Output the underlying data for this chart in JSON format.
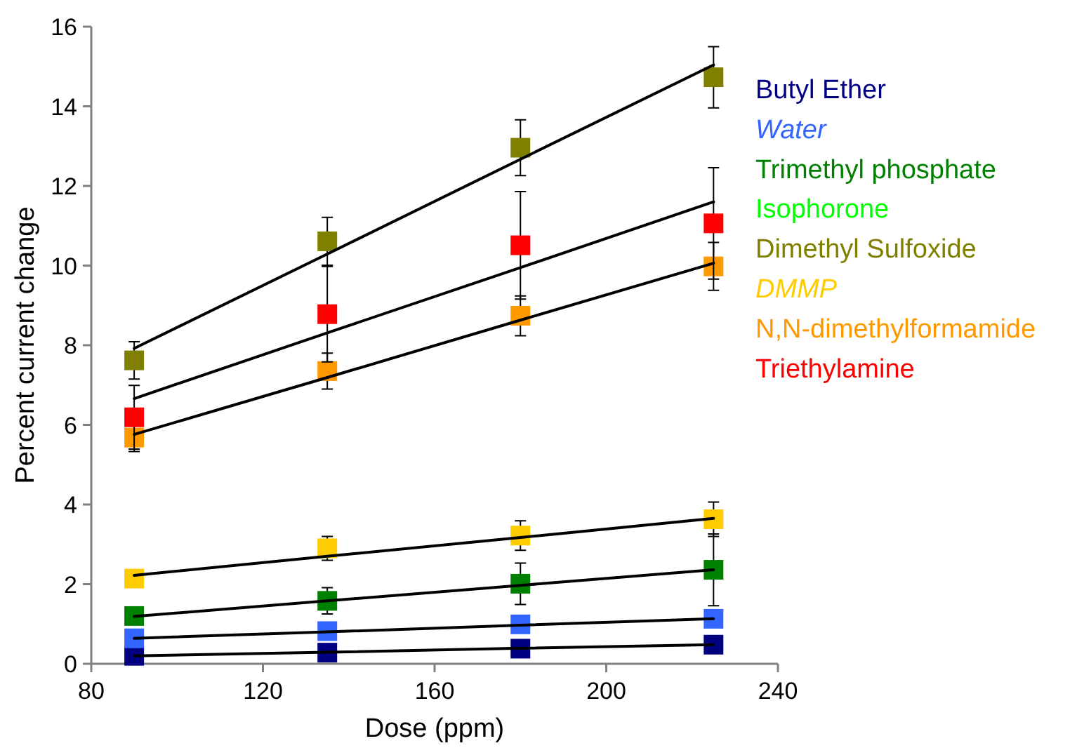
{
  "chart_data": {
    "type": "scatter",
    "xlabel": "Dose (ppm)",
    "ylabel": "Percent current change",
    "xlim": [
      80,
      240
    ],
    "xticks": [
      80,
      120,
      160,
      200,
      240
    ],
    "ylim": [
      0,
      16
    ],
    "yticks": [
      0,
      2,
      4,
      6,
      8,
      10,
      12,
      14,
      16
    ],
    "grid": false,
    "legend": "right",
    "marker": "square",
    "x": [
      90,
      135,
      180,
      225
    ],
    "series": [
      {
        "name": "Butyl Ether",
        "color": "#000080",
        "values": [
          0.2,
          0.28,
          0.38,
          0.48
        ]
      },
      {
        "name": "Water",
        "color": "#3366ff",
        "values": [
          0.64,
          0.82,
          0.99,
          1.13
        ]
      },
      {
        "name": "Trimethyl phosphate",
        "color": "#008000",
        "values": [
          1.2,
          1.58,
          2.01,
          2.36
        ],
        "errors": [
          null,
          0.33,
          0.52,
          0.9
        ]
      },
      {
        "name": "Isophorone",
        "color": "#00ff00",
        "values": [
          null,
          null,
          null,
          null
        ]
      },
      {
        "name": "Dimethyl Sulfoxide",
        "color": "#808000",
        "values": [
          7.62,
          10.61,
          12.96,
          14.73
        ],
        "errors": [
          0.47,
          0.6,
          0.7,
          0.77
        ]
      },
      {
        "name": "DMMP",
        "color": "#ffcc00",
        "values": [
          2.14,
          2.9,
          3.22,
          3.63
        ],
        "errors": [
          null,
          0.3,
          0.37,
          0.43
        ]
      },
      {
        "name": "N,N-dimethylformamide",
        "color": "#ff9900",
        "values": [
          5.68,
          7.35,
          8.74,
          9.98
        ],
        "errors": [
          0.35,
          0.45,
          0.5,
          0.6
        ]
      },
      {
        "name": "Triethylamine",
        "color": "#ff0000",
        "values": [
          6.19,
          8.78,
          10.51,
          11.06
        ],
        "errors": [
          0.8,
          1.2,
          1.35,
          1.4
        ]
      },
      {
        "type": "line",
        "marker": "none",
        "color": "#000000",
        "values": [
          0.2,
          0.29,
          0.39,
          0.48
        ]
      },
      {
        "type": "line",
        "marker": "none",
        "color": "#000000",
        "values": [
          0.64,
          0.8,
          0.97,
          1.13
        ]
      },
      {
        "type": "line",
        "marker": "none",
        "color": "#000000",
        "values": [
          1.19,
          1.58,
          1.97,
          2.36
        ]
      },
      {
        "type": "line",
        "marker": "none",
        "color": "#000000",
        "values": [
          2.22,
          2.7,
          3.17,
          3.65
        ]
      },
      {
        "type": "line",
        "marker": "none",
        "color": "#000000",
        "values": [
          7.92,
          10.29,
          12.67,
          15.04
        ]
      },
      {
        "type": "line",
        "marker": "none",
        "color": "#000000",
        "values": [
          6.66,
          8.31,
          9.95,
          11.6
        ]
      },
      {
        "type": "line",
        "marker": "none",
        "color": "#000000",
        "values": [
          5.76,
          7.19,
          8.63,
          10.06
        ]
      }
    ]
  }
}
